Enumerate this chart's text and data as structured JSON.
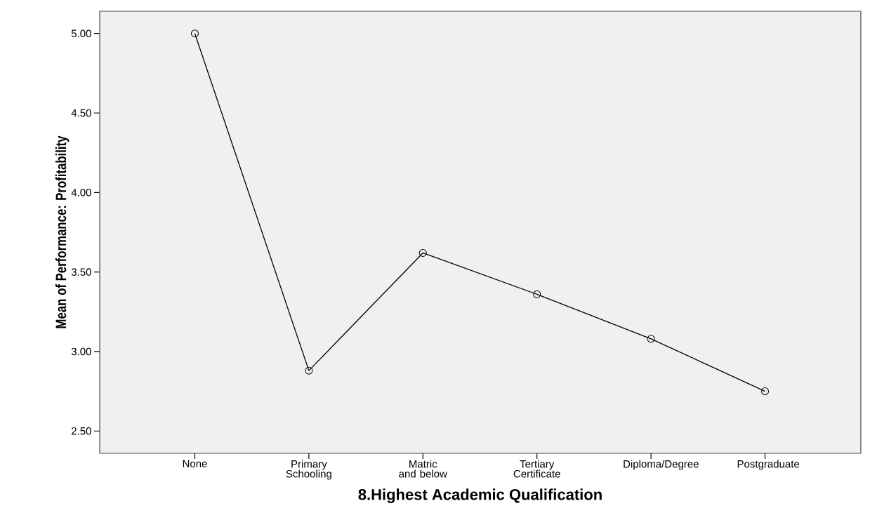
{
  "chart_data": {
    "type": "line",
    "xlabel": "8.Highest Academic Qualification",
    "ylabel": "Mean of Performance: Profitability",
    "categories": [
      "None",
      "Primary Schooling",
      "Matric and below",
      "Tertiary Certificate",
      "Diploma/Degree",
      "Postgraduate"
    ],
    "series": [
      {
        "color": "#000000",
        "values": [
          5.0,
          2.88,
          3.62,
          3.36,
          3.08,
          2.75
        ]
      }
    ],
    "ylim": [
      2.36,
      5.14
    ],
    "yticks": [
      {
        "value": 2.5,
        "label": "2.50"
      },
      {
        "value": 3.0,
        "label": "3.00"
      },
      {
        "value": 3.5,
        "label": "3.50"
      },
      {
        "value": 4.0,
        "label": "4.00"
      },
      {
        "value": 4.5,
        "label": "4.50"
      },
      {
        "value": 5.0,
        "label": "5.00"
      }
    ],
    "marker": "circle",
    "line_style": "solid",
    "grid": false
  }
}
